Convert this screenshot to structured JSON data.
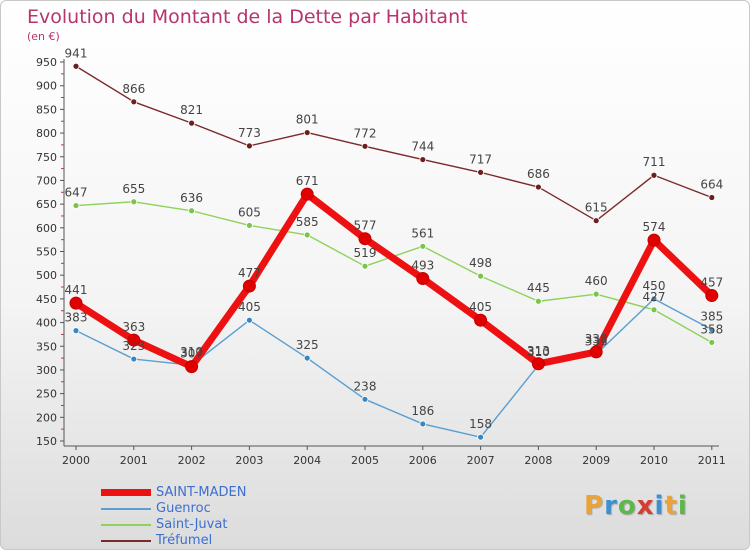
{
  "header": {
    "title": "Evolution du Montant de la Dette par Habitant",
    "subtitle": "(en €)"
  },
  "logo": {
    "letters": [
      "P",
      "r",
      "o",
      "x",
      "i",
      "t",
      "i"
    ],
    "colors": [
      "#e8a33b",
      "#3d8fd0",
      "#5bb84a",
      "#d63c2f",
      "#3d8fd0",
      "#e8a33b",
      "#5bb84a"
    ]
  },
  "chart_data": {
    "type": "line",
    "x": [
      "2000",
      "2001",
      "2002",
      "2003",
      "2004",
      "2005",
      "2006",
      "2007",
      "2008",
      "2009",
      "2010",
      "2011"
    ],
    "ylim": [
      150,
      950
    ],
    "yticks": [
      150,
      200,
      250,
      300,
      350,
      400,
      450,
      500,
      550,
      600,
      650,
      700,
      750,
      800,
      850,
      900,
      950
    ],
    "grid": false,
    "legend_position": "bottom-left",
    "series": [
      {
        "name": "Tréfumel",
        "color": "#7b2a2a",
        "dot": "#6b1f1f",
        "values": [
          941,
          866,
          821,
          773,
          801,
          772,
          744,
          717,
          686,
          615,
          711,
          664
        ]
      },
      {
        "name": "Saint-Juvat",
        "color": "#8ed25a",
        "dot": "#7bc44a",
        "values": [
          647,
          655,
          636,
          605,
          585,
          519,
          561,
          498,
          445,
          460,
          427,
          358
        ]
      },
      {
        "name": "Guenroc",
        "color": "#5a9fd0",
        "dot": "#3a86c0",
        "values": [
          383,
          323,
          310,
          405,
          325,
          238,
          186,
          158,
          310,
          333,
          450,
          385
        ]
      },
      {
        "name": "SAINT-MADEN",
        "color": "#ee1111",
        "dot": "#e00000",
        "values": [
          441,
          363,
          307,
          477,
          671,
          577,
          493,
          405,
          313,
          338,
          574,
          457
        ]
      }
    ],
    "legend": [
      {
        "name": "SAINT-MADEN",
        "color": "#ee1111"
      },
      {
        "name": "Guenroc",
        "color": "#5a9fd0"
      },
      {
        "name": "Saint-Juvat",
        "color": "#8ed25a"
      },
      {
        "name": "Tréfumel",
        "color": "#7b2a2a"
      }
    ]
  }
}
